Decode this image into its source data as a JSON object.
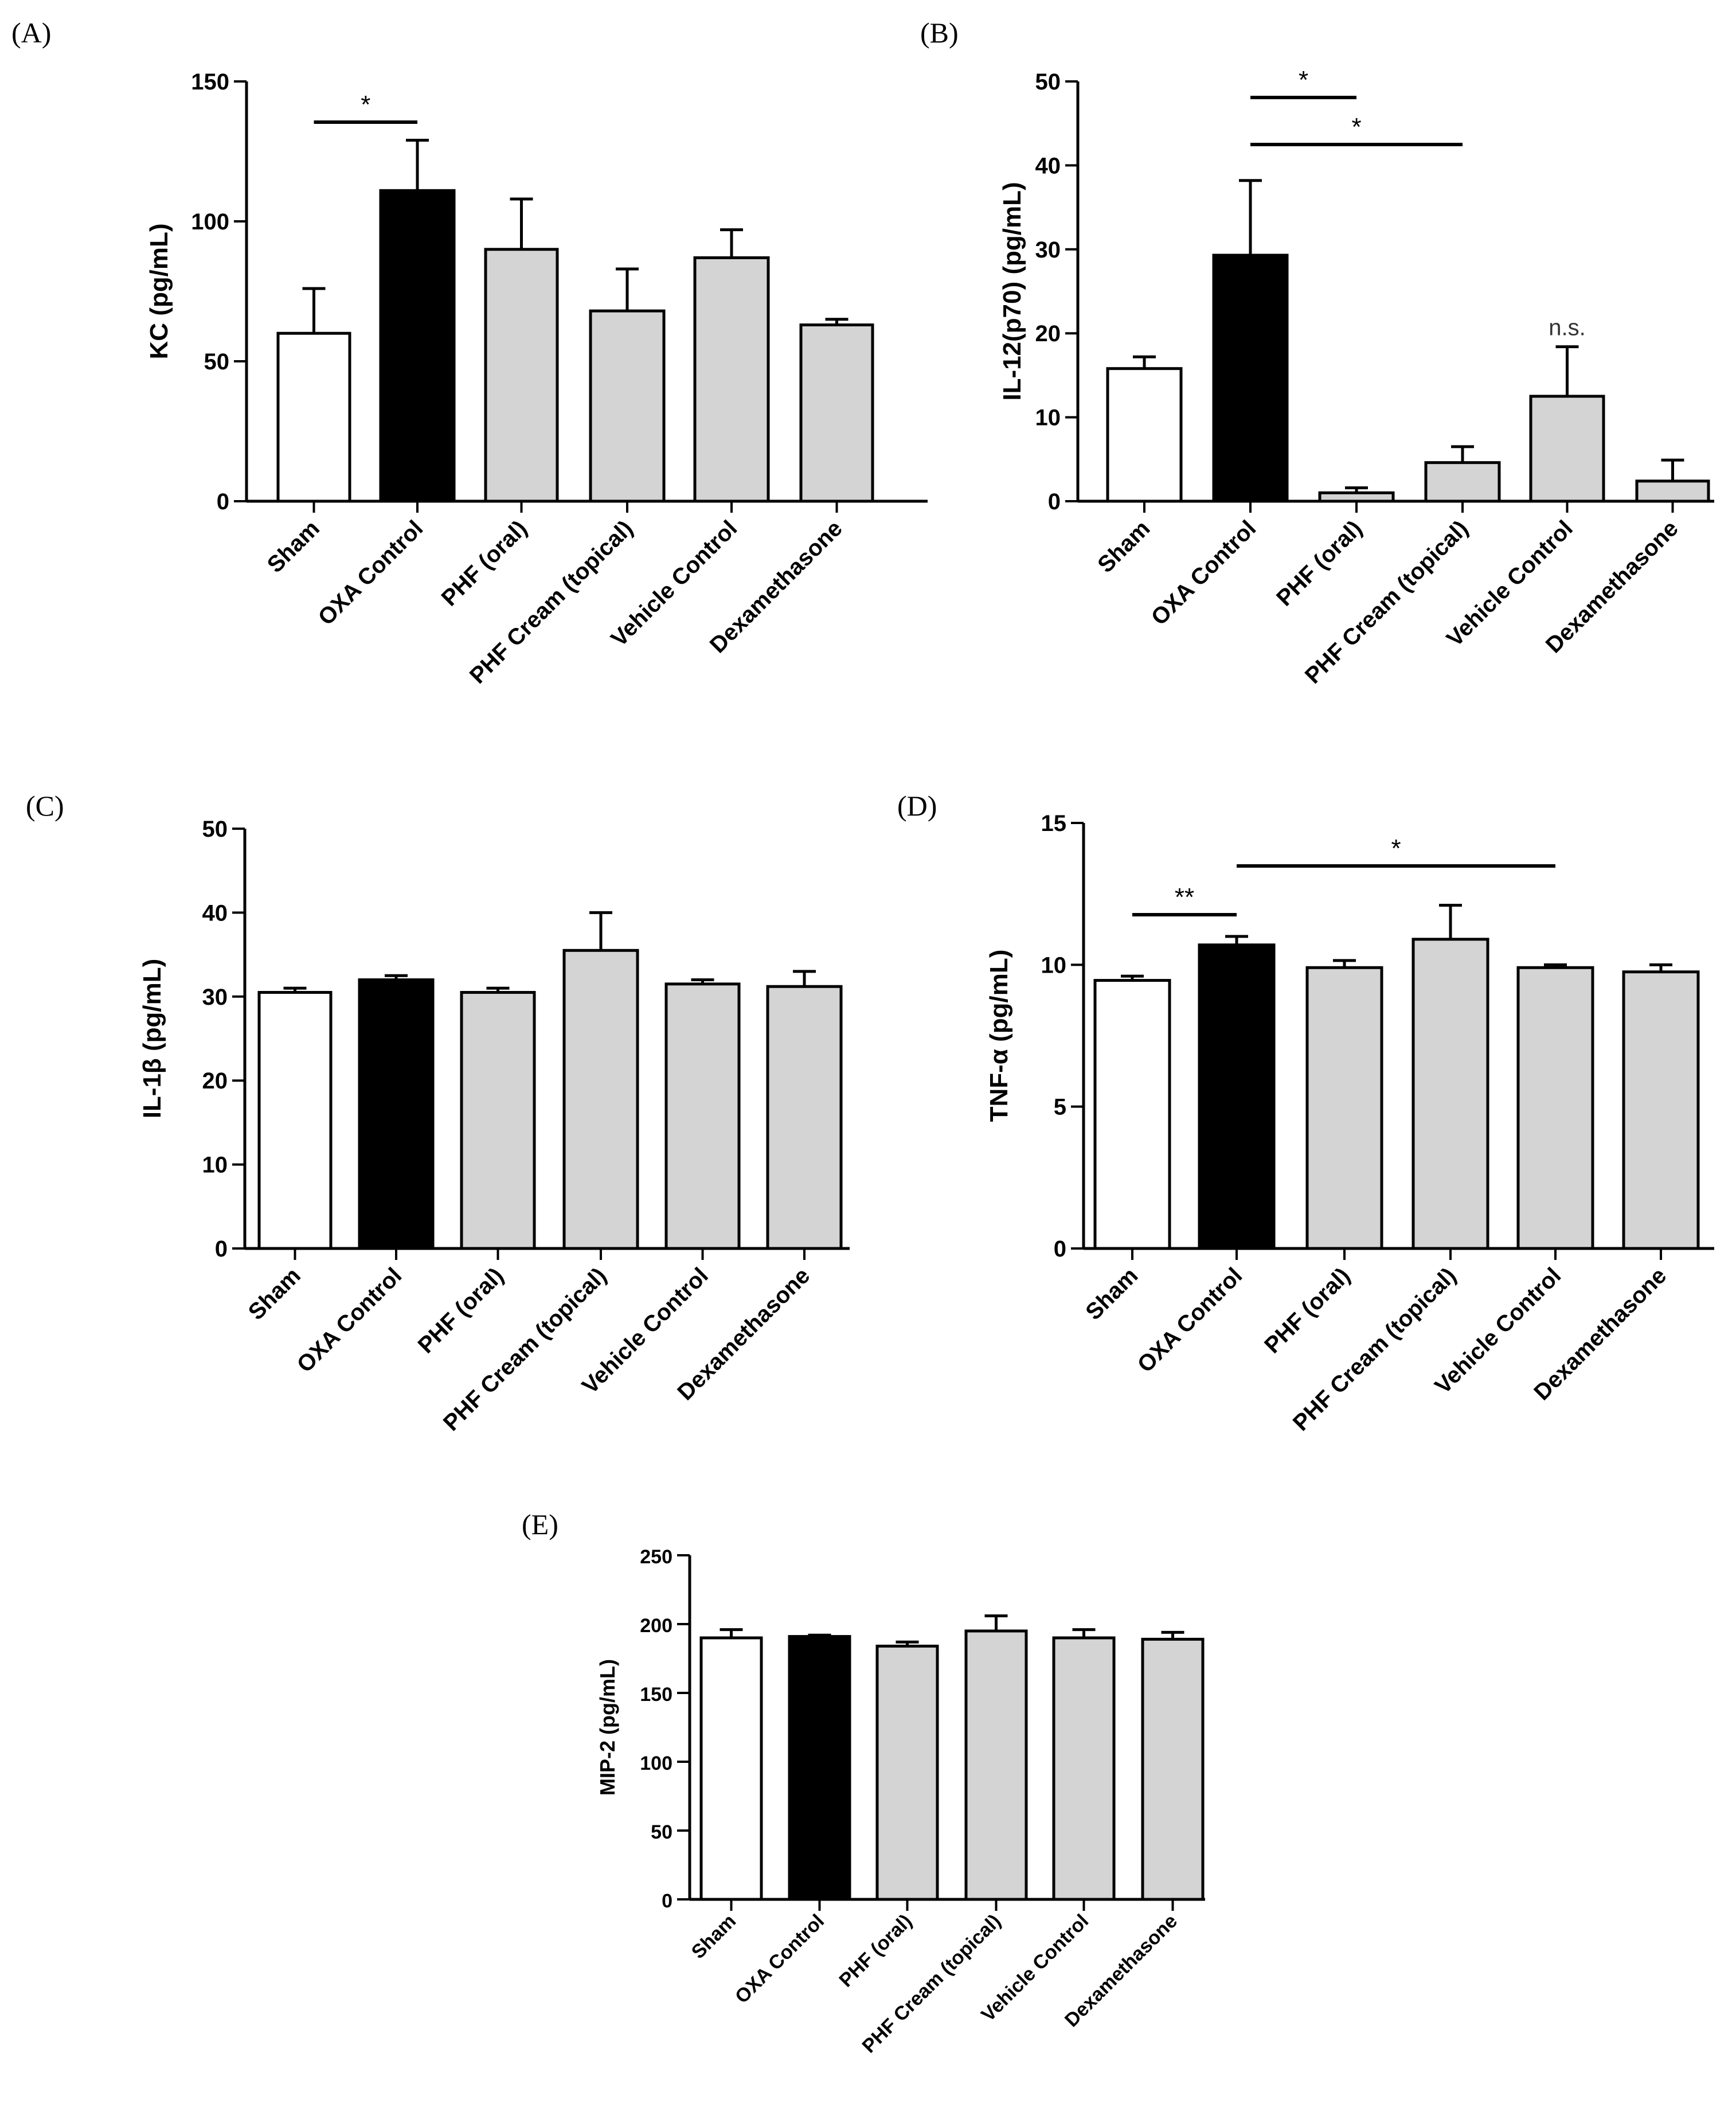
{
  "colors": {
    "sham": "#ffffff",
    "control": "#000000",
    "treatment": "#d4d4d4",
    "stroke": "#000000"
  },
  "chart_data": [
    {
      "type": "bar",
      "panel": "(A)",
      "ylabel": "KC (pg/mL)",
      "ylim": [
        0,
        150
      ],
      "yticks": [
        "0",
        "50",
        "100",
        "150"
      ],
      "categories": [
        "Sham",
        "OXA Control",
        "PHF (oral)",
        "PHF Cream (topical)",
        "Vehicle Control",
        "Dexamethasone"
      ],
      "values": [
        60,
        111,
        90,
        68,
        87,
        63
      ],
      "errors": [
        16,
        18,
        18,
        15,
        10,
        2
      ],
      "significance": [
        {
          "from": 0,
          "to": 1,
          "label": "*"
        }
      ]
    },
    {
      "type": "bar",
      "panel": "(B)",
      "ylabel": "IL-12(p70) (pg/mL)",
      "ylim": [
        0,
        50
      ],
      "yticks": [
        "0",
        "10",
        "20",
        "30",
        "40",
        "50"
      ],
      "categories": [
        "Sham",
        "OXA Control",
        "PHF (oral)",
        "PHF Cream (topical)",
        "Vehicle Control",
        "Dexamethasone"
      ],
      "values": [
        15.8,
        29.3,
        1.0,
        4.6,
        12.5,
        2.4
      ],
      "errors": [
        1.4,
        8.9,
        0.6,
        1.9,
        5.9,
        2.5
      ],
      "significance": [
        {
          "from": 1,
          "to": 2,
          "label": "*"
        },
        {
          "from": 1,
          "to": 3,
          "label": "*"
        }
      ],
      "annotations": [
        {
          "bar": 4,
          "label": "n.s."
        }
      ]
    },
    {
      "type": "bar",
      "panel": "(C)",
      "ylabel": "IL-1β (pg/mL)",
      "ylim": [
        0,
        50
      ],
      "yticks": [
        "0",
        "10",
        "20",
        "30",
        "40",
        "50"
      ],
      "categories": [
        "Sham",
        "OXA Control",
        "PHF (oral)",
        "PHF Cream (topical)",
        "Vehicle Control",
        "Dexamethasone"
      ],
      "values": [
        30.5,
        32.0,
        30.5,
        35.5,
        31.5,
        31.2
      ],
      "errors": [
        0.5,
        0.5,
        0.5,
        4.5,
        0.5,
        1.8
      ],
      "significance": []
    },
    {
      "type": "bar",
      "panel": "(D)",
      "ylabel": "TNF-α (pg/mL)",
      "ylim": [
        0,
        15
      ],
      "yticks": [
        "0",
        "5",
        "10",
        "15"
      ],
      "categories": [
        "Sham",
        "OXA Control",
        "PHF (oral)",
        "PHF Cream (topical)",
        "Vehicle Control",
        "Dexamethasone"
      ],
      "values": [
        9.45,
        10.7,
        9.9,
        10.9,
        9.9,
        9.75
      ],
      "errors": [
        0.15,
        0.3,
        0.25,
        1.2,
        0.1,
        0.25
      ],
      "significance": [
        {
          "from": 0,
          "to": 1,
          "label": "**"
        },
        {
          "from": 1,
          "to": 4,
          "label": "*"
        }
      ]
    },
    {
      "type": "bar",
      "panel": "(E)",
      "ylabel": "MIP-2 (pg/mL)",
      "ylim": [
        0,
        250
      ],
      "yticks": [
        "0",
        "50",
        "100",
        "150",
        "200",
        "250"
      ],
      "categories": [
        "Sham",
        "OXA Control",
        "PHF (oral)",
        "PHF Cream (topical)",
        "Vehicle Control",
        "Dexamethasone"
      ],
      "values": [
        190,
        191,
        184,
        195,
        190,
        189
      ],
      "errors": [
        6,
        1,
        3,
        11,
        6,
        5
      ],
      "significance": []
    }
  ]
}
